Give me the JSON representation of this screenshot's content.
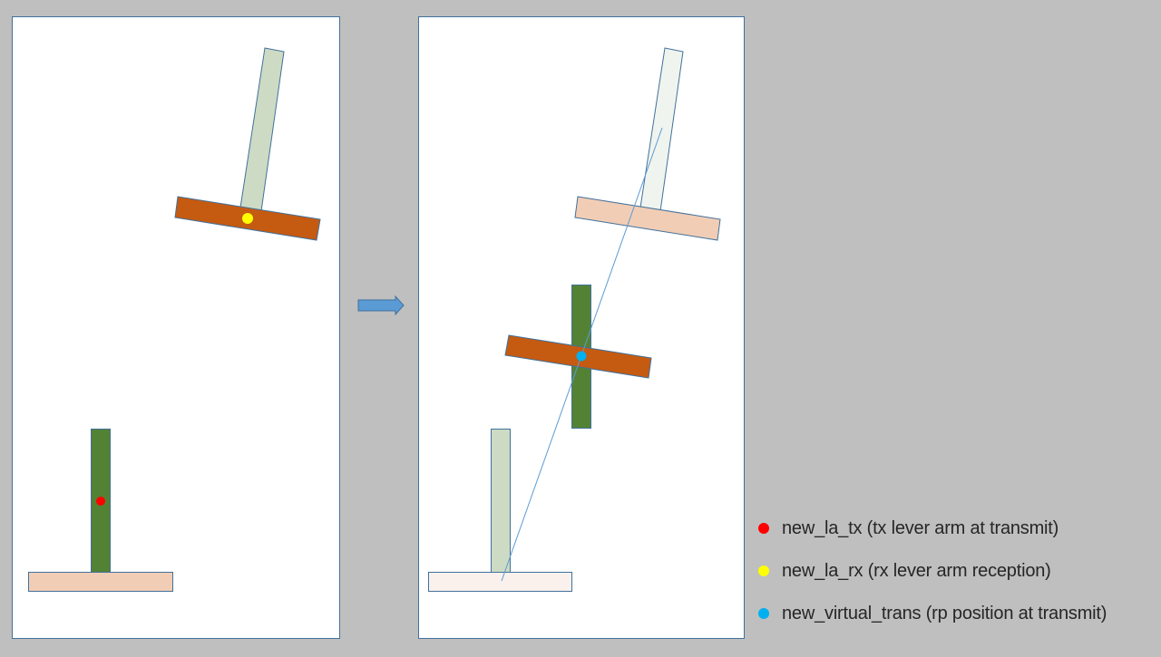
{
  "colors": {
    "background": "#bfbfbf",
    "panel_fill": "#ffffff",
    "panel_border": "#41719c",
    "outline": "#41719c",
    "antenna_tx": "#548235",
    "antenna_rx": "#c55a11",
    "mast_top": "#cddbc4",
    "mast_top_faded": "#f0f4ee",
    "mast_bottom": "#cddbc4",
    "base_bottom": "#f2cdb5",
    "base_bottom_faded": "#fbf1ec",
    "crossbar_top_faded": "#f2cdb5",
    "arrow": "#5b9bd5",
    "line": "#5b9bd5",
    "dot_tx": "#ff0000",
    "dot_rx": "#ffff00",
    "dot_virtual": "#00b0f0"
  },
  "icons": {
    "transition_arrow": "right-arrow-icon"
  },
  "legend": {
    "items": [
      {
        "label": "new_la_tx (tx lever arm at transmit)",
        "color": "#ff0000"
      },
      {
        "label": "new_la_rx (rx lever arm reception)",
        "color": "#ffff00"
      },
      {
        "label": "new_virtual_trans (rp position at transmit)",
        "color": "#00b0f0"
      }
    ]
  }
}
